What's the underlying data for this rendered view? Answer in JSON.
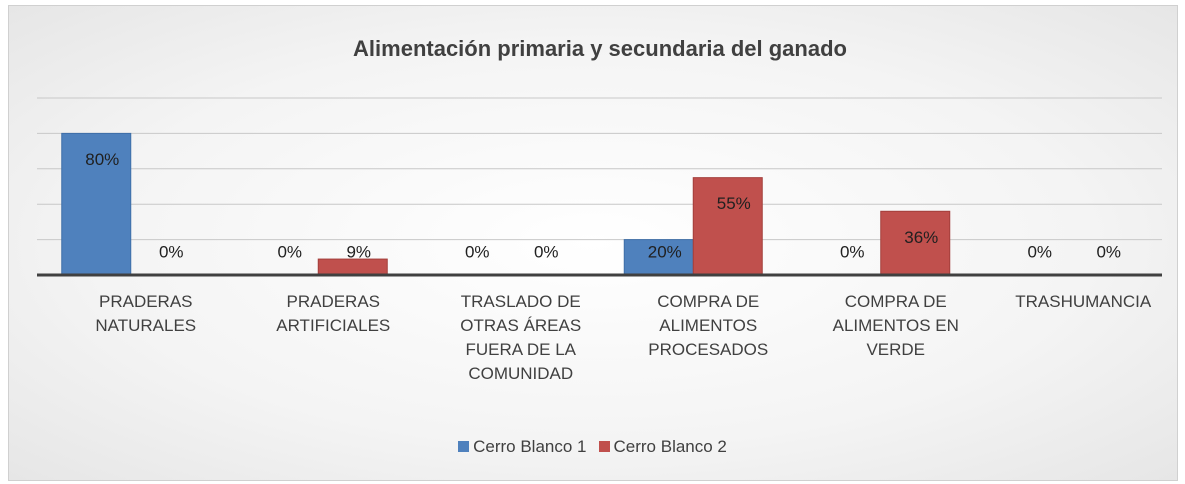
{
  "chart_data": {
    "type": "bar",
    "title": "Alimentación primaria y secundaria del ganado",
    "categories": [
      "PRADERAS\nNATURALES",
      "PRADERAS\nARTIFICIALES",
      "TRASLADO DE\nOTRAS ÁREAS\nFUERA DE LA\nCOMUNIDAD",
      "COMPRA DE\nALIMENTOS\nPROCESADOS",
      "COMPRA DE\nALIMENTOS EN\nVERDE",
      "TRASHUMANCIA"
    ],
    "series": [
      {
        "name": "Cerro Blanco 1",
        "color": "#4f81bd",
        "values": [
          80,
          0,
          0,
          20,
          0,
          0
        ],
        "value_labels": [
          "80%",
          "0%",
          "0%",
          "20%",
          "0%",
          "0%"
        ]
      },
      {
        "name": "Cerro Blanco 2",
        "color": "#c0504d",
        "values": [
          0,
          9,
          0,
          55,
          36,
          0
        ],
        "value_labels": [
          "0%",
          "9%",
          "0%",
          "55%",
          "36%",
          "0%"
        ]
      }
    ],
    "ylim": [
      0,
      100
    ],
    "yticks": [
      0,
      20,
      40,
      60,
      80,
      100
    ],
    "grid": true,
    "legend": "bottom"
  }
}
